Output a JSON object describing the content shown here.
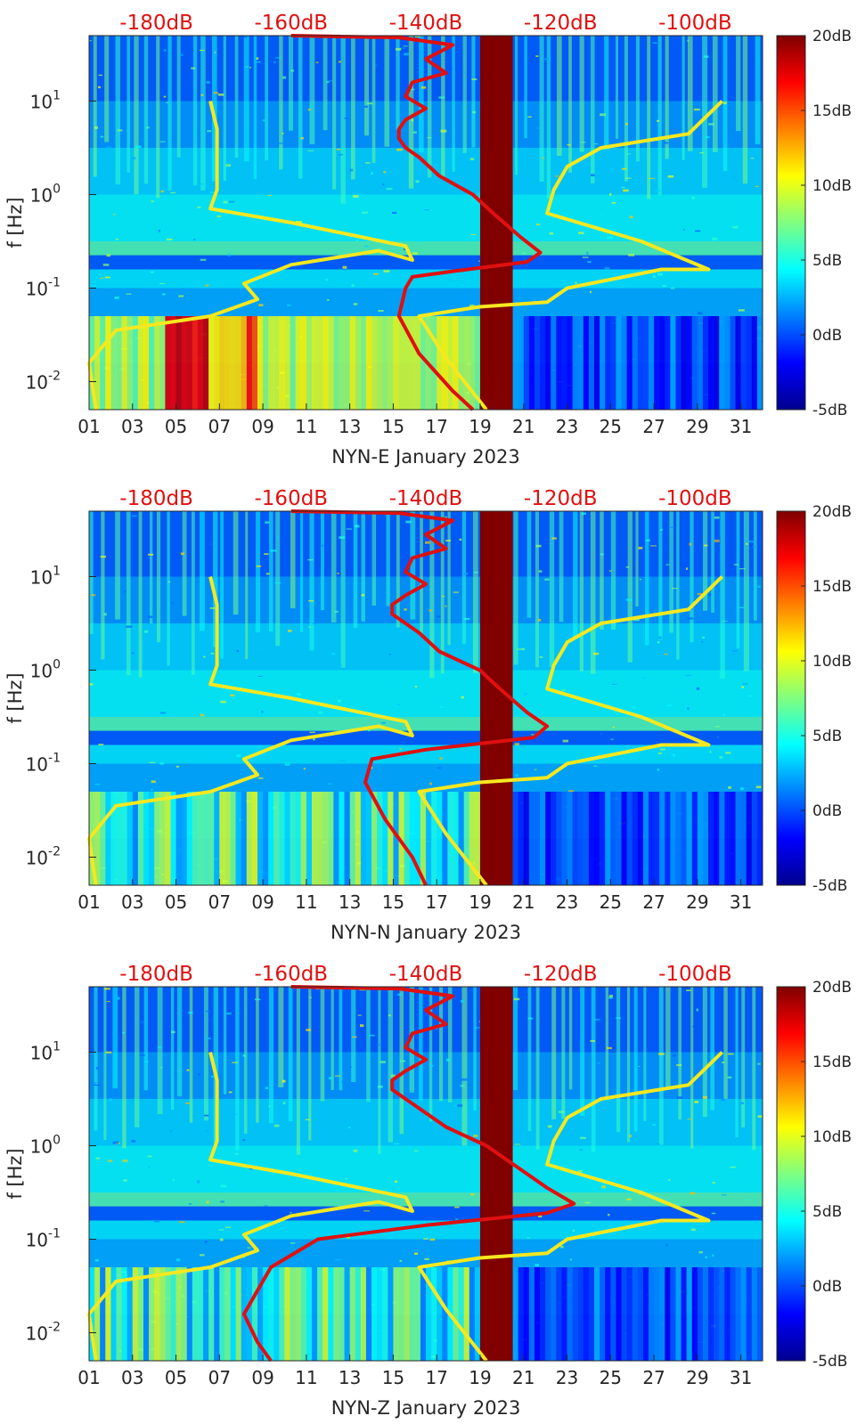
{
  "chart_data": [
    {
      "type": "heatmap",
      "title": "",
      "xlabel": "NYN-E January 2023",
      "ylabel": "f [Hz]",
      "x_ticks": [
        "01",
        "03",
        "05",
        "07",
        "09",
        "11",
        "13",
        "15",
        "17",
        "19",
        "21",
        "23",
        "25",
        "27",
        "29",
        "31"
      ],
      "y_ticks": [
        "10^-2",
        "10^-1",
        "10^0",
        "10^1"
      ],
      "y_ticks_base": "10",
      "y_ticks_exp": [
        "-2",
        "-1",
        "0",
        "1"
      ],
      "xlim": [
        1,
        32
      ],
      "ylim_log10": [
        -2.3,
        1.7
      ],
      "top_db_labels": [
        "-180dB",
        "-160dB",
        "-140dB",
        "-120dB",
        "-100dB"
      ],
      "colorbar_labels": [
        "20dB",
        "15dB",
        "10dB",
        "5dB",
        "0dB",
        "-5dB"
      ],
      "colorbar_range": [
        -5,
        20
      ],
      "gap_days": [
        19.0,
        20.5
      ],
      "series": [
        {
          "name": "red-psd-curve",
          "color": "#e01010",
          "points": [
            [
              -160,
              1.7
            ],
            [
              -144,
              1.68
            ],
            [
              -136,
              1.6
            ],
            [
              -140,
              1.45
            ],
            [
              -137,
              1.3
            ],
            [
              -142,
              1.2
            ],
            [
              -143,
              1.05
            ],
            [
              -140,
              0.92
            ],
            [
              -143,
              0.8
            ],
            [
              -144,
              0.7
            ],
            [
              -144,
              0.6
            ],
            [
              -143,
              0.5
            ],
            [
              -141,
              0.4
            ],
            [
              -138,
              0.2
            ],
            [
              -133,
              0.0
            ],
            [
              -130,
              -0.2
            ],
            [
              -126,
              -0.45
            ],
            [
              -123,
              -0.62
            ],
            [
              -125,
              -0.72
            ],
            [
              -136,
              -0.82
            ],
            [
              -142,
              -0.88
            ],
            [
              -143,
              -1.0
            ],
            [
              -144,
              -1.3
            ],
            [
              -141,
              -1.7
            ],
            [
              -136,
              -2.1
            ],
            [
              -133,
              -2.3
            ]
          ]
        },
        {
          "name": "yellow-model-curve-left",
          "color": "#f5e820",
          "points": [
            [
              -189,
              -2.3
            ],
            [
              -190,
              -1.8
            ],
            [
              -186,
              -1.45
            ],
            [
              -172,
              -1.3
            ],
            [
              -165,
              -1.12
            ],
            [
              -167,
              -0.95
            ],
            [
              -160,
              -0.75
            ],
            [
              -147,
              -0.6
            ],
            [
              -142,
              -0.7
            ],
            [
              -143,
              -0.55
            ],
            [
              -160,
              -0.3
            ],
            [
              -172,
              -0.15
            ],
            [
              -171,
              0.05
            ],
            [
              -171,
              0.35
            ],
            [
              -171,
              0.7
            ],
            [
              -172,
              1.0
            ]
          ]
        },
        {
          "name": "yellow-model-curve-right",
          "color": "#f5e820",
          "points": [
            [
              -131,
              -2.3
            ],
            [
              -137,
              -1.75
            ],
            [
              -141,
              -1.3
            ],
            [
              -132,
              -1.2
            ],
            [
              -122,
              -1.15
            ],
            [
              -119,
              -1.0
            ],
            [
              -105,
              -0.8
            ],
            [
              -98,
              -0.8
            ],
            [
              -108,
              -0.5
            ],
            [
              -122,
              -0.2
            ],
            [
              -121,
              0.05
            ],
            [
              -119,
              0.3
            ],
            [
              -114,
              0.5
            ],
            [
              -101,
              0.65
            ],
            [
              -96,
              1.0
            ]
          ]
        }
      ]
    },
    {
      "type": "heatmap",
      "title": "",
      "xlabel": "NYN-N January 2023",
      "ylabel": "f [Hz]",
      "x_ticks": [
        "01",
        "03",
        "05",
        "07",
        "09",
        "11",
        "13",
        "15",
        "17",
        "19",
        "21",
        "23",
        "25",
        "27",
        "29",
        "31"
      ],
      "y_ticks": [
        "10^-2",
        "10^-1",
        "10^0",
        "10^1"
      ],
      "y_ticks_base": "10",
      "y_ticks_exp": [
        "-2",
        "-1",
        "0",
        "1"
      ],
      "xlim": [
        1,
        32
      ],
      "ylim_log10": [
        -2.3,
        1.7
      ],
      "top_db_labels": [
        "-180dB",
        "-160dB",
        "-140dB",
        "-120dB",
        "-100dB"
      ],
      "colorbar_labels": [
        "20dB",
        "15dB",
        "10dB",
        "5dB",
        "0dB",
        "-5dB"
      ],
      "colorbar_range": [
        -5,
        20
      ],
      "gap_days": [
        19.0,
        20.5
      ],
      "series": [
        {
          "name": "red-psd-curve",
          "color": "#e01010",
          "points": [
            [
              -160,
              1.7
            ],
            [
              -144,
              1.68
            ],
            [
              -136,
              1.6
            ],
            [
              -140,
              1.45
            ],
            [
              -137,
              1.3
            ],
            [
              -142,
              1.2
            ],
            [
              -143,
              1.05
            ],
            [
              -140,
              0.92
            ],
            [
              -143,
              0.8
            ],
            [
              -145,
              0.7
            ],
            [
              -145,
              0.6
            ],
            [
              -143,
              0.5
            ],
            [
              -141,
              0.4
            ],
            [
              -138,
              0.2
            ],
            [
              -132,
              0.0
            ],
            [
              -129,
              -0.2
            ],
            [
              -125,
              -0.45
            ],
            [
              -122,
              -0.6
            ],
            [
              -124,
              -0.72
            ],
            [
              -140,
              -0.85
            ],
            [
              -148,
              -0.95
            ],
            [
              -149,
              -1.2
            ],
            [
              -146,
              -1.6
            ],
            [
              -142,
              -2.0
            ],
            [
              -140,
              -2.3
            ]
          ]
        },
        {
          "name": "yellow-model-curve-left",
          "color": "#f5e820",
          "points": [
            [
              -189,
              -2.3
            ],
            [
              -190,
              -1.8
            ],
            [
              -186,
              -1.45
            ],
            [
              -172,
              -1.3
            ],
            [
              -165,
              -1.12
            ],
            [
              -167,
              -0.95
            ],
            [
              -160,
              -0.75
            ],
            [
              -147,
              -0.6
            ],
            [
              -142,
              -0.7
            ],
            [
              -143,
              -0.55
            ],
            [
              -160,
              -0.3
            ],
            [
              -172,
              -0.15
            ],
            [
              -171,
              0.05
            ],
            [
              -171,
              0.35
            ],
            [
              -171,
              0.7
            ],
            [
              -172,
              1.0
            ]
          ]
        },
        {
          "name": "yellow-model-curve-right",
          "color": "#f5e820",
          "points": [
            [
              -131,
              -2.3
            ],
            [
              -137,
              -1.75
            ],
            [
              -141,
              -1.3
            ],
            [
              -132,
              -1.2
            ],
            [
              -122,
              -1.15
            ],
            [
              -119,
              -1.0
            ],
            [
              -105,
              -0.8
            ],
            [
              -98,
              -0.8
            ],
            [
              -108,
              -0.5
            ],
            [
              -122,
              -0.2
            ],
            [
              -121,
              0.05
            ],
            [
              -119,
              0.3
            ],
            [
              -114,
              0.5
            ],
            [
              -101,
              0.65
            ],
            [
              -96,
              1.0
            ]
          ]
        }
      ]
    },
    {
      "type": "heatmap",
      "title": "",
      "xlabel": "NYN-Z January 2023",
      "ylabel": "f [Hz]",
      "x_ticks": [
        "01",
        "03",
        "05",
        "07",
        "09",
        "11",
        "13",
        "15",
        "17",
        "19",
        "21",
        "23",
        "25",
        "27",
        "29",
        "31"
      ],
      "y_ticks": [
        "10^-2",
        "10^-1",
        "10^0",
        "10^1"
      ],
      "y_ticks_base": "10",
      "y_ticks_exp": [
        "-2",
        "-1",
        "0",
        "1"
      ],
      "xlim": [
        1,
        32
      ],
      "ylim_log10": [
        -2.3,
        1.7
      ],
      "top_db_labels": [
        "-180dB",
        "-160dB",
        "-140dB",
        "-120dB",
        "-100dB"
      ],
      "colorbar_labels": [
        "20dB",
        "15dB",
        "10dB",
        "5dB",
        "0dB",
        "-5dB"
      ],
      "colorbar_range": [
        -5,
        20
      ],
      "gap_days": [
        19.0,
        20.5
      ],
      "series": [
        {
          "name": "red-psd-curve",
          "color": "#e01010",
          "points": [
            [
              -160,
              1.7
            ],
            [
              -144,
              1.68
            ],
            [
              -136,
              1.6
            ],
            [
              -140,
              1.45
            ],
            [
              -137,
              1.3
            ],
            [
              -142,
              1.2
            ],
            [
              -143,
              1.05
            ],
            [
              -140,
              0.92
            ],
            [
              -143,
              0.8
            ],
            [
              -145,
              0.7
            ],
            [
              -145,
              0.6
            ],
            [
              -143,
              0.5
            ],
            [
              -141,
              0.4
            ],
            [
              -137,
              0.2
            ],
            [
              -131,
              0.0
            ],
            [
              -127,
              -0.2
            ],
            [
              -122,
              -0.45
            ],
            [
              -118,
              -0.62
            ],
            [
              -122,
              -0.72
            ],
            [
              -140,
              -0.85
            ],
            [
              -156,
              -1.0
            ],
            [
              -163,
              -1.3
            ],
            [
              -167,
              -1.8
            ],
            [
              -165,
              -2.1
            ],
            [
              -163,
              -2.3
            ]
          ]
        },
        {
          "name": "yellow-model-curve-left",
          "color": "#f5e820",
          "points": [
            [
              -189,
              -2.3
            ],
            [
              -190,
              -1.8
            ],
            [
              -186,
              -1.45
            ],
            [
              -172,
              -1.3
            ],
            [
              -165,
              -1.12
            ],
            [
              -167,
              -0.95
            ],
            [
              -160,
              -0.75
            ],
            [
              -147,
              -0.6
            ],
            [
              -142,
              -0.7
            ],
            [
              -143,
              -0.55
            ],
            [
              -160,
              -0.3
            ],
            [
              -172,
              -0.15
            ],
            [
              -171,
              0.05
            ],
            [
              -171,
              0.35
            ],
            [
              -171,
              0.7
            ],
            [
              -172,
              1.0
            ]
          ]
        },
        {
          "name": "yellow-model-curve-right",
          "color": "#f5e820",
          "points": [
            [
              -131,
              -2.3
            ],
            [
              -137,
              -1.75
            ],
            [
              -141,
              -1.3
            ],
            [
              -132,
              -1.2
            ],
            [
              -122,
              -1.15
            ],
            [
              -119,
              -1.0
            ],
            [
              -105,
              -0.8
            ],
            [
              -98,
              -0.8
            ],
            [
              -108,
              -0.5
            ],
            [
              -122,
              -0.2
            ],
            [
              -121,
              0.05
            ],
            [
              -119,
              0.3
            ],
            [
              -114,
              0.5
            ],
            [
              -101,
              0.65
            ],
            [
              -96,
              1.0
            ]
          ]
        }
      ]
    }
  ]
}
